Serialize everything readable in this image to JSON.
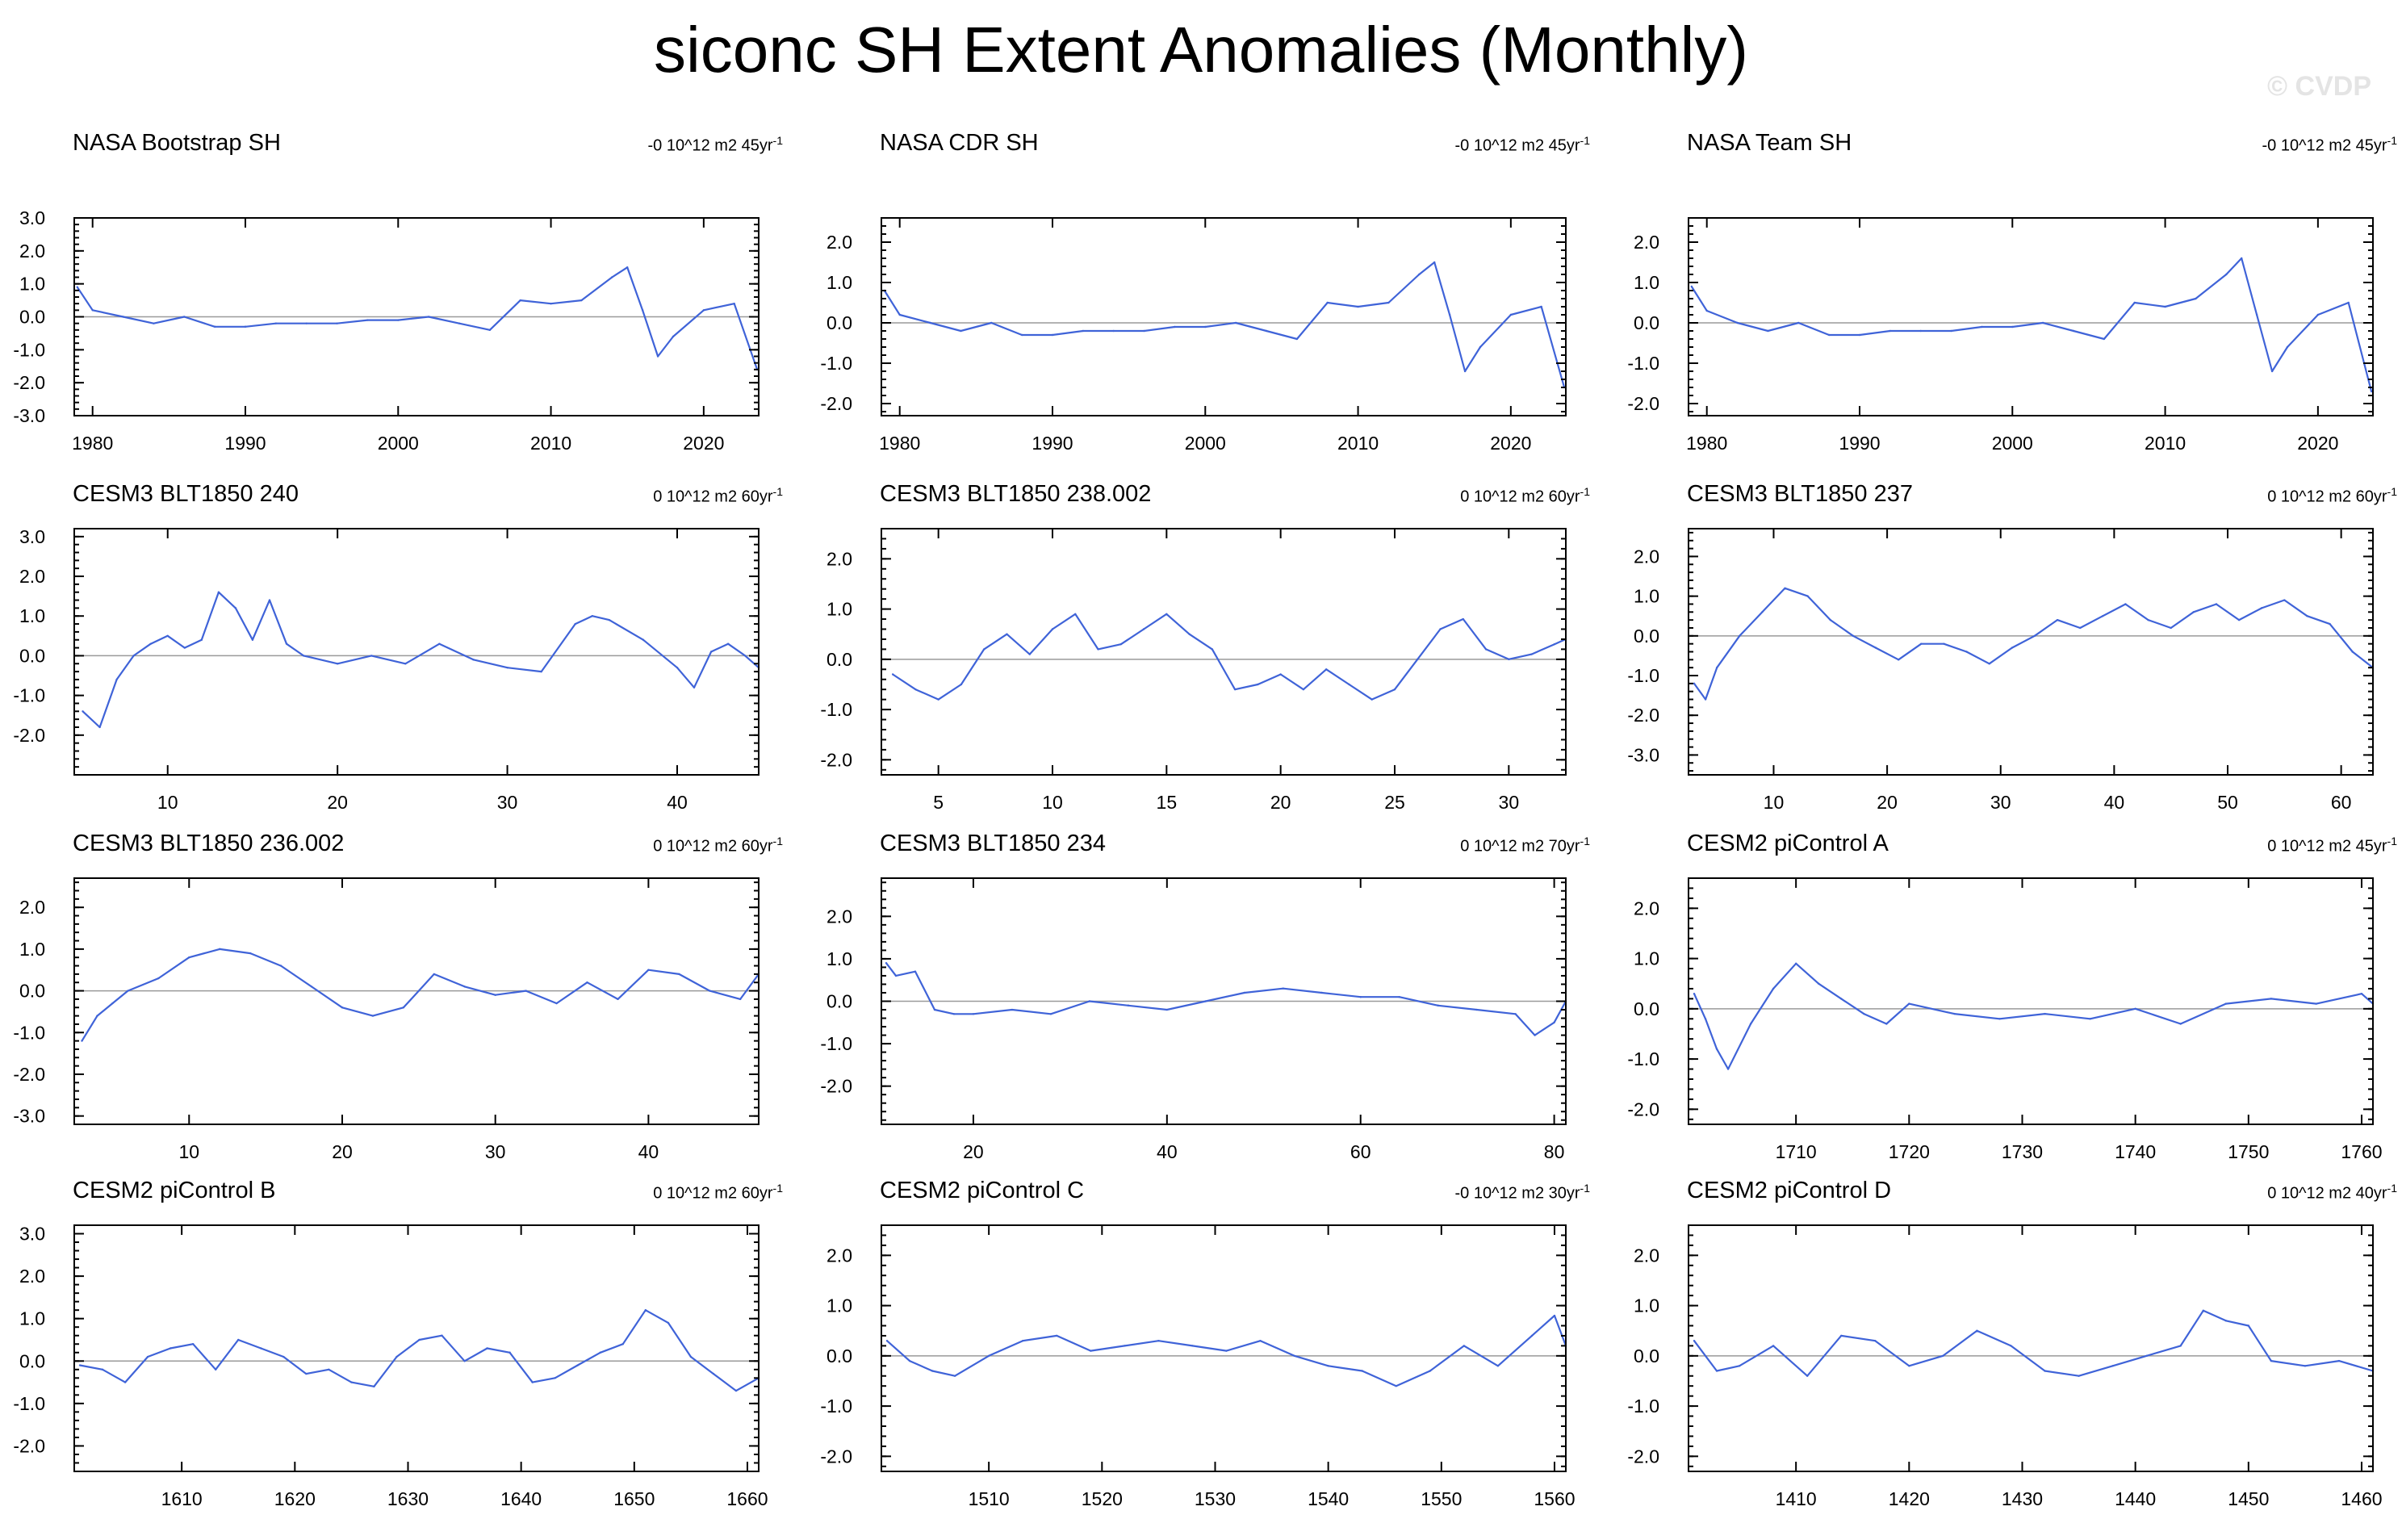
{
  "title": "siconc SH Extent Anomalies (Monthly)",
  "watermark": "© CVDP",
  "colors": {
    "series": "#3f63d8",
    "zero_line": "#9a9a9a",
    "frame": "#000000"
  },
  "chart_data": [
    {
      "type": "line",
      "title": "NASA Bootstrap SH",
      "trend": "-0 10^12 m2 45yr",
      "trend_exp": "-1",
      "xlim": [
        1978.8,
        2023.6
      ],
      "ylim": [
        -3,
        3
      ],
      "xticks": [
        1980,
        1990,
        2000,
        2010,
        2020
      ],
      "yticks": [
        -3.0,
        -2.0,
        -1.0,
        0.0,
        1.0,
        2.0,
        3.0
      ],
      "yticklabels": [
        "-3.0",
        "-2.0",
        "-1.0",
        "0.0",
        "1.0",
        "2.0",
        "3.0"
      ],
      "x": [
        1979,
        1980,
        1982,
        1984,
        1986,
        1988,
        1990,
        1992,
        1994,
        1996,
        1998,
        2000,
        2002,
        2004,
        2006,
        2008,
        2010,
        2012,
        2014,
        2015,
        2016,
        2017,
        2018,
        2020,
        2022,
        2023.5
      ],
      "values": [
        0.9,
        0.2,
        0.0,
        -0.2,
        0.0,
        -0.3,
        -0.3,
        -0.2,
        -0.2,
        -0.2,
        -0.1,
        -0.1,
        0.0,
        -0.2,
        -0.4,
        0.5,
        0.4,
        0.5,
        1.2,
        1.5,
        0.2,
        -1.2,
        -0.6,
        0.2,
        0.4,
        -1.6
      ]
    },
    {
      "type": "line",
      "title": "NASA CDR SH",
      "trend": "-0 10^12 m2 45yr",
      "trend_exp": "-1",
      "xlim": [
        1978.8,
        2023.6
      ],
      "ylim": [
        -2.3,
        2.6
      ],
      "xticks": [
        1980,
        1990,
        2000,
        2010,
        2020
      ],
      "yticks": [
        -2.0,
        -1.0,
        0.0,
        1.0,
        2.0
      ],
      "yticklabels": [
        "-2.0",
        "-1.0",
        "0.0",
        "1.0",
        "2.0"
      ],
      "x": [
        1979,
        1980,
        1982,
        1984,
        1986,
        1988,
        1990,
        1992,
        1994,
        1996,
        1998,
        2000,
        2002,
        2004,
        2006,
        2008,
        2010,
        2012,
        2014,
        2015,
        2016,
        2017,
        2018,
        2020,
        2022,
        2023.5
      ],
      "values": [
        0.8,
        0.2,
        0.0,
        -0.2,
        0.0,
        -0.3,
        -0.3,
        -0.2,
        -0.2,
        -0.2,
        -0.1,
        -0.1,
        0.0,
        -0.2,
        -0.4,
        0.5,
        0.4,
        0.5,
        1.2,
        1.5,
        0.2,
        -1.2,
        -0.6,
        0.2,
        0.4,
        -1.6
      ]
    },
    {
      "type": "line",
      "title": "NASA Team SH",
      "trend": "-0 10^12 m2 45yr",
      "trend_exp": "-1",
      "xlim": [
        1978.8,
        2023.6
      ],
      "ylim": [
        -2.3,
        2.6
      ],
      "xticks": [
        1980,
        1990,
        2000,
        2010,
        2020
      ],
      "yticks": [
        -2.0,
        -1.0,
        0.0,
        1.0,
        2.0
      ],
      "yticklabels": [
        "-2.0",
        "-1.0",
        "0.0",
        "1.0",
        "2.0"
      ],
      "x": [
        1979,
        1980,
        1982,
        1984,
        1986,
        1988,
        1990,
        1992,
        1994,
        1996,
        1998,
        2000,
        2002,
        2004,
        2006,
        2008,
        2010,
        2012,
        2014,
        2015,
        2016,
        2017,
        2018,
        2020,
        2022,
        2023.5
      ],
      "values": [
        0.9,
        0.3,
        0.0,
        -0.2,
        0.0,
        -0.3,
        -0.3,
        -0.2,
        -0.2,
        -0.2,
        -0.1,
        -0.1,
        0.0,
        -0.2,
        -0.4,
        0.5,
        0.4,
        0.6,
        1.2,
        1.6,
        0.2,
        -1.2,
        -0.6,
        0.2,
        0.5,
        -1.7
      ]
    },
    {
      "type": "line",
      "title": "CESM3 BLT1850 240",
      "trend": "0 10^12 m2 60yr",
      "trend_exp": "-1",
      "xlim": [
        4.5,
        44.8
      ],
      "ylim": [
        -3,
        3.2
      ],
      "xticks": [
        10,
        20,
        30,
        40
      ],
      "yticks": [
        -2.0,
        -1.0,
        0.0,
        1.0,
        2.0,
        3.0
      ],
      "yticklabels": [
        "-2.0",
        "-1.0",
        "0.0",
        "1.0",
        "2.0",
        "3.0"
      ],
      "x": [
        5,
        6,
        7,
        8,
        9,
        10,
        11,
        12,
        13,
        14,
        15,
        16,
        17,
        18,
        20,
        22,
        24,
        26,
        28,
        30,
        32,
        34,
        35,
        36,
        38,
        40,
        41,
        42,
        43,
        44,
        44.8
      ],
      "values": [
        -1.4,
        -1.8,
        -0.6,
        0.0,
        0.3,
        0.5,
        0.2,
        0.4,
        1.6,
        1.2,
        0.4,
        1.4,
        0.3,
        0.0,
        -0.2,
        0.0,
        -0.2,
        0.3,
        -0.1,
        -0.3,
        -0.4,
        0.8,
        1.0,
        0.9,
        0.4,
        -0.3,
        -0.8,
        0.1,
        0.3,
        0.0,
        -0.3
      ]
    },
    {
      "type": "line",
      "title": "CESM3 BLT1850 238.002",
      "trend": "0 10^12 m2 60yr",
      "trend_exp": "-1",
      "xlim": [
        2.5,
        32.5
      ],
      "ylim": [
        -2.3,
        2.6
      ],
      "xticks": [
        5,
        10,
        15,
        20,
        25,
        30
      ],
      "yticks": [
        -2.0,
        -1.0,
        0.0,
        1.0,
        2.0
      ],
      "yticklabels": [
        "-2.0",
        "-1.0",
        "0.0",
        "1.0",
        "2.0"
      ],
      "x": [
        3,
        4,
        5,
        6,
        7,
        8,
        9,
        10,
        11,
        12,
        13,
        14,
        15,
        16,
        17,
        18,
        19,
        20,
        21,
        22,
        23,
        24,
        25,
        26,
        27,
        28,
        29,
        30,
        31,
        32,
        32.5
      ],
      "values": [
        -0.3,
        -0.6,
        -0.8,
        -0.5,
        0.2,
        0.5,
        0.1,
        0.6,
        0.9,
        0.2,
        0.3,
        0.6,
        0.9,
        0.5,
        0.2,
        -0.6,
        -0.5,
        -0.3,
        -0.6,
        -0.2,
        -0.5,
        -0.8,
        -0.6,
        0.0,
        0.6,
        0.8,
        0.2,
        0.0,
        0.1,
        0.3,
        0.4
      ]
    },
    {
      "type": "line",
      "title": "CESM3 BLT1850 237",
      "trend": "0 10^12 m2 60yr",
      "trend_exp": "-1",
      "xlim": [
        2.5,
        62.8
      ],
      "ylim": [
        -3.5,
        2.7
      ],
      "xticks": [
        10,
        20,
        30,
        40,
        50,
        60
      ],
      "yticks": [
        -3.0,
        -2.0,
        -1.0,
        0.0,
        1.0,
        2.0
      ],
      "yticklabels": [
        "-3.0",
        "-2.0",
        "-1.0",
        "0.0",
        "1.0",
        "2.0"
      ],
      "x": [
        3,
        4,
        5,
        7,
        9,
        11,
        13,
        15,
        17,
        19,
        21,
        23,
        25,
        27,
        29,
        31,
        33,
        35,
        37,
        39,
        41,
        43,
        45,
        47,
        49,
        51,
        53,
        55,
        57,
        59,
        61,
        62.8
      ],
      "values": [
        -1.2,
        -1.6,
        -0.8,
        0.0,
        0.6,
        1.2,
        1.0,
        0.4,
        0.0,
        -0.3,
        -0.6,
        -0.2,
        -0.2,
        -0.4,
        -0.7,
        -0.3,
        0.0,
        0.4,
        0.2,
        0.5,
        0.8,
        0.4,
        0.2,
        0.6,
        0.8,
        0.4,
        0.7,
        0.9,
        0.5,
        0.3,
        -0.4,
        -0.8
      ]
    },
    {
      "type": "line",
      "title": "CESM3 BLT1850 236.002",
      "trend": "0 10^12 m2 60yr",
      "trend_exp": "-1",
      "xlim": [
        2.5,
        47.2
      ],
      "ylim": [
        -3.2,
        2.7
      ],
      "xticks": [
        10,
        20,
        30,
        40
      ],
      "yticks": [
        -3.0,
        -2.0,
        -1.0,
        0.0,
        1.0,
        2.0
      ],
      "yticklabels": [
        "-3.0",
        "-2.0",
        "-1.0",
        "0.0",
        "1.0",
        "2.0"
      ],
      "x": [
        3,
        4,
        5,
        6,
        8,
        10,
        12,
        14,
        16,
        18,
        20,
        22,
        24,
        26,
        28,
        30,
        32,
        34,
        36,
        38,
        40,
        42,
        44,
        46,
        47.2
      ],
      "values": [
        -1.2,
        -0.6,
        -0.3,
        0.0,
        0.3,
        0.8,
        1.0,
        0.9,
        0.6,
        0.1,
        -0.4,
        -0.6,
        -0.4,
        0.4,
        0.1,
        -0.1,
        0.0,
        -0.3,
        0.2,
        -0.2,
        0.5,
        0.4,
        0.0,
        -0.2,
        0.4
      ]
    },
    {
      "type": "line",
      "title": "CESM3 BLT1850 234",
      "trend": "0 10^12 m2 70yr",
      "trend_exp": "-1",
      "xlim": [
        10.5,
        81.2
      ],
      "ylim": [
        -2.9,
        2.9
      ],
      "xticks": [
        20,
        40,
        60,
        80
      ],
      "yticks": [
        -2.0,
        -1.0,
        0.0,
        1.0,
        2.0
      ],
      "yticklabels": [
        "-2.0",
        "-1.0",
        "0.0",
        "1.0",
        "2.0"
      ],
      "x": [
        11,
        12,
        14,
        16,
        18,
        20,
        24,
        28,
        32,
        36,
        40,
        44,
        48,
        52,
        56,
        60,
        64,
        68,
        72,
        76,
        78,
        80,
        81.2
      ],
      "values": [
        0.9,
        0.6,
        0.7,
        -0.2,
        -0.3,
        -0.3,
        -0.2,
        -0.3,
        0.0,
        -0.1,
        -0.2,
        0.0,
        0.2,
        0.3,
        0.2,
        0.1,
        0.1,
        -0.1,
        -0.2,
        -0.3,
        -0.8,
        -0.5,
        0.0
      ]
    },
    {
      "type": "line",
      "title": "CESM2 piControl A",
      "trend": "0 10^12 m2 45yr",
      "trend_exp": "-1",
      "xlim": [
        1700.5,
        1761
      ],
      "ylim": [
        -2.3,
        2.6
      ],
      "xticks": [
        1710,
        1720,
        1730,
        1740,
        1750,
        1760
      ],
      "yticks": [
        -2.0,
        -1.0,
        0.0,
        1.0,
        2.0
      ],
      "yticklabels": [
        "-2.0",
        "-1.0",
        "0.0",
        "1.0",
        "2.0"
      ],
      "x": [
        1701,
        1702,
        1703,
        1704,
        1706,
        1708,
        1710,
        1712,
        1714,
        1716,
        1718,
        1720,
        1724,
        1728,
        1732,
        1736,
        1740,
        1744,
        1748,
        1752,
        1756,
        1760,
        1761
      ],
      "values": [
        0.3,
        -0.2,
        -0.8,
        -1.2,
        -0.3,
        0.4,
        0.9,
        0.5,
        0.2,
        -0.1,
        -0.3,
        0.1,
        -0.1,
        -0.2,
        -0.1,
        -0.2,
        0.0,
        -0.3,
        0.1,
        0.2,
        0.1,
        0.3,
        0.1
      ]
    },
    {
      "type": "line",
      "title": "CESM2 piControl B",
      "trend": "0 10^12 m2 60yr",
      "trend_exp": "-1",
      "xlim": [
        1600.5,
        1661
      ],
      "ylim": [
        -2.6,
        3.2
      ],
      "xticks": [
        1610,
        1620,
        1630,
        1640,
        1650,
        1660
      ],
      "yticks": [
        -2.0,
        -1.0,
        0.0,
        1.0,
        2.0,
        3.0
      ],
      "yticklabels": [
        "-2.0",
        "-1.0",
        "0.0",
        "1.0",
        "2.0",
        "3.0"
      ],
      "x": [
        1601,
        1603,
        1605,
        1607,
        1609,
        1611,
        1613,
        1615,
        1617,
        1619,
        1621,
        1623,
        1625,
        1627,
        1629,
        1631,
        1633,
        1635,
        1637,
        1639,
        1641,
        1643,
        1645,
        1647,
        1649,
        1651,
        1653,
        1655,
        1657,
        1659,
        1661
      ],
      "values": [
        -0.1,
        -0.2,
        -0.5,
        0.1,
        0.3,
        0.4,
        -0.2,
        0.5,
        0.3,
        0.1,
        -0.3,
        -0.2,
        -0.5,
        -0.6,
        0.1,
        0.5,
        0.6,
        0.0,
        0.3,
        0.2,
        -0.5,
        -0.4,
        -0.1,
        0.2,
        0.4,
        1.2,
        0.9,
        0.1,
        -0.3,
        -0.7,
        -0.4
      ]
    },
    {
      "type": "line",
      "title": "CESM2 piControl C",
      "trend": "-0 10^12 m2 30yr",
      "trend_exp": "-1",
      "xlim": [
        1500.5,
        1561
      ],
      "ylim": [
        -2.3,
        2.6
      ],
      "xticks": [
        1510,
        1520,
        1530,
        1540,
        1550,
        1560
      ],
      "yticks": [
        -2.0,
        -1.0,
        0.0,
        1.0,
        2.0
      ],
      "yticklabels": [
        "-2.0",
        "-1.0",
        "0.0",
        "1.0",
        "2.0"
      ],
      "x": [
        1501,
        1503,
        1505,
        1507,
        1510,
        1513,
        1516,
        1519,
        1522,
        1525,
        1528,
        1531,
        1534,
        1537,
        1540,
        1543,
        1546,
        1549,
        1552,
        1555,
        1558,
        1560,
        1561
      ],
      "values": [
        0.3,
        -0.1,
        -0.3,
        -0.4,
        0.0,
        0.3,
        0.4,
        0.1,
        0.2,
        0.3,
        0.2,
        0.1,
        0.3,
        0.0,
        -0.2,
        -0.3,
        -0.6,
        -0.3,
        0.2,
        -0.2,
        0.4,
        0.8,
        0.2
      ]
    },
    {
      "type": "line",
      "title": "CESM2 piControl D",
      "trend": "0 10^12 m2 40yr",
      "trend_exp": "-1",
      "xlim": [
        1400.5,
        1461
      ],
      "ylim": [
        -2.3,
        2.6
      ],
      "xticks": [
        1410,
        1420,
        1430,
        1440,
        1450,
        1460
      ],
      "yticks": [
        -2.0,
        -1.0,
        0.0,
        1.0,
        2.0
      ],
      "yticklabels": [
        "-2.0",
        "-1.0",
        "0.0",
        "1.0",
        "2.0"
      ],
      "x": [
        1401,
        1403,
        1405,
        1408,
        1411,
        1414,
        1417,
        1420,
        1423,
        1426,
        1429,
        1432,
        1435,
        1438,
        1441,
        1444,
        1446,
        1448,
        1450,
        1452,
        1455,
        1458,
        1461
      ],
      "values": [
        0.3,
        -0.3,
        -0.2,
        0.2,
        -0.4,
        0.4,
        0.3,
        -0.2,
        0.0,
        0.5,
        0.2,
        -0.3,
        -0.4,
        -0.2,
        0.0,
        0.2,
        0.9,
        0.7,
        0.6,
        -0.1,
        -0.2,
        -0.1,
        -0.3
      ]
    }
  ]
}
